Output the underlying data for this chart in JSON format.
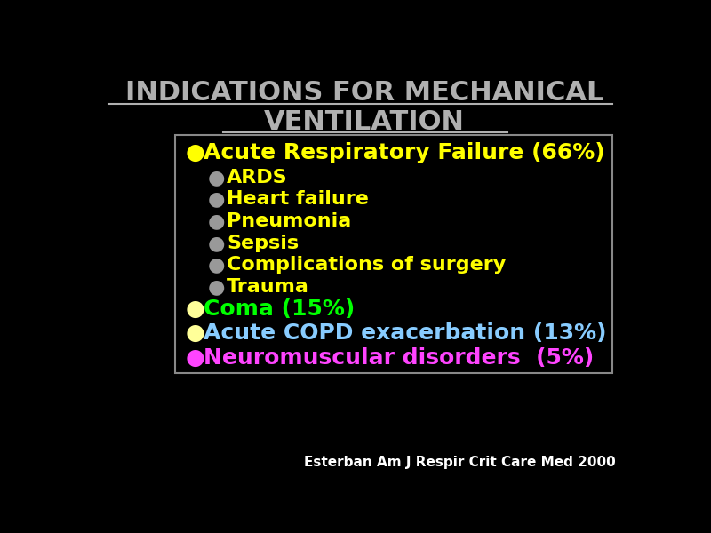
{
  "title_line1": "INDICATIONS FOR MECHANICAL",
  "title_line2": "VENTILATION",
  "title_color": "#b0b0b0",
  "title_underline_color": "#b0b0b0",
  "background_color": "#000000",
  "box_background": "#000000",
  "box_border_color": "#888888",
  "citation": "Esterban Am J Respir Crit Care Med 2000",
  "citation_color": "#ffffff",
  "items": [
    {
      "level": 0,
      "text": "Acute Respiratory Failure (66%)",
      "color": "#ffff00",
      "bullet_color": "#ffff00"
    },
    {
      "level": 1,
      "text": "ARDS",
      "color": "#ffff00",
      "bullet_color": "#999999"
    },
    {
      "level": 1,
      "text": "Heart failure",
      "color": "#ffff00",
      "bullet_color": "#999999"
    },
    {
      "level": 1,
      "text": "Pneumonia",
      "color": "#ffff00",
      "bullet_color": "#999999"
    },
    {
      "level": 1,
      "text": "Sepsis",
      "color": "#ffff00",
      "bullet_color": "#999999"
    },
    {
      "level": 1,
      "text": "Complications of surgery",
      "color": "#ffff00",
      "bullet_color": "#999999"
    },
    {
      "level": 1,
      "text": "Trauma",
      "color": "#ffff00",
      "bullet_color": "#999999"
    },
    {
      "level": 0,
      "text": "Coma (15%)",
      "color": "#00ff00",
      "bullet_color": "#ffff99"
    },
    {
      "level": 0,
      "text": "Acute COPD exacerbation (13%)",
      "color": "#88ccff",
      "bullet_color": "#ffff99"
    },
    {
      "level": 0,
      "text": "Neuromuscular disorders  (5%)",
      "color": "#ff44ff",
      "bullet_color": "#ff44ff"
    }
  ]
}
